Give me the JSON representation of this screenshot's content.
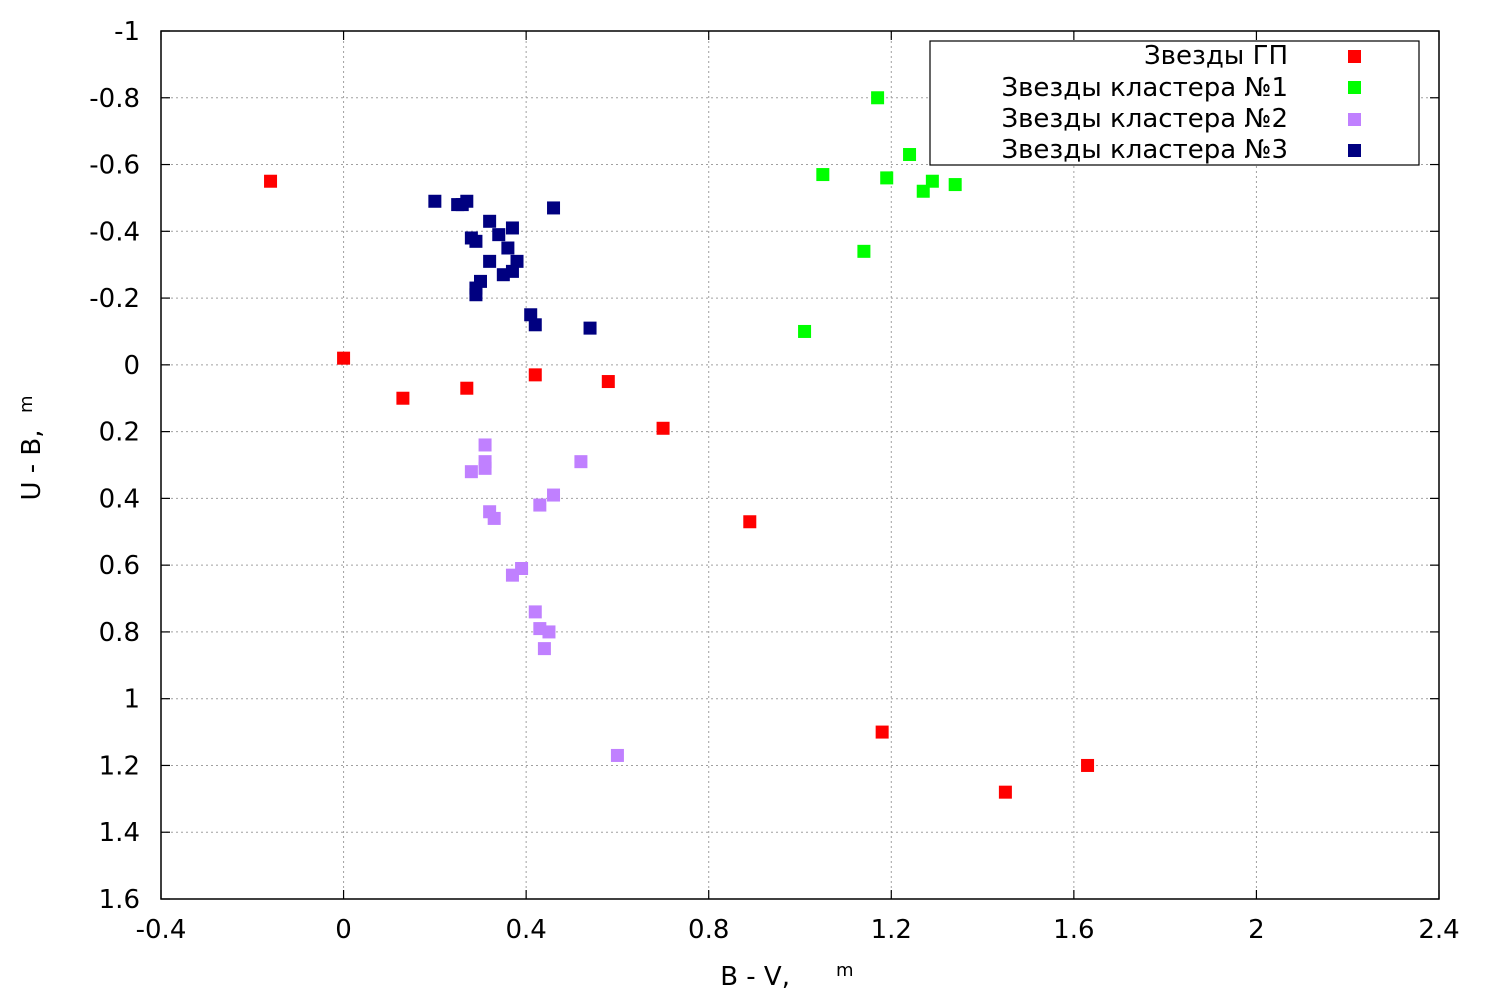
{
  "chart_data": {
    "type": "scatter",
    "xlabel": "B - V,",
    "xlabel_sup": "m",
    "ylabel": "U - B,",
    "ylabel_sup": "m",
    "xlim": [
      -0.4,
      2.4
    ],
    "ylim": [
      -1,
      1.6
    ],
    "y_inverted": true,
    "x_ticks": [
      "-0.4",
      "0",
      "0.4",
      "0.8",
      "1.2",
      "1.6",
      "2",
      "2.4"
    ],
    "x_tick_values": [
      -0.4,
      0,
      0.4,
      0.8,
      1.2,
      1.6,
      2.0,
      2.4
    ],
    "y_ticks": [
      "-1",
      "-0.8",
      "-0.6",
      "-0.4",
      "-0.2",
      "0",
      "0.2",
      "0.4",
      "0.6",
      "0.8",
      "1",
      "1.2",
      "1.4",
      "1.6"
    ],
    "y_tick_values": [
      -1,
      -0.8,
      -0.6,
      -0.4,
      -0.2,
      0,
      0.2,
      0.4,
      0.6,
      0.8,
      1,
      1.2,
      1.4,
      1.6
    ],
    "grid": true,
    "legend_position": "top-right",
    "series": [
      {
        "name": "Звезды ГП",
        "color": "#ff0000",
        "points": [
          [
            -0.16,
            -0.55
          ],
          [
            0.0,
            -0.02
          ],
          [
            0.13,
            0.1
          ],
          [
            0.27,
            0.07
          ],
          [
            0.42,
            0.03
          ],
          [
            0.58,
            0.05
          ],
          [
            0.7,
            0.19
          ],
          [
            0.89,
            0.47
          ],
          [
            1.18,
            1.1
          ],
          [
            1.63,
            1.2
          ],
          [
            1.45,
            1.28
          ]
        ]
      },
      {
        "name": "Звезды кластера №1",
        "color": "#00ff00",
        "points": [
          [
            1.17,
            -0.8
          ],
          [
            1.24,
            -0.63
          ],
          [
            1.05,
            -0.57
          ],
          [
            1.19,
            -0.56
          ],
          [
            1.29,
            -0.55
          ],
          [
            1.34,
            -0.54
          ],
          [
            1.27,
            -0.52
          ],
          [
            1.14,
            -0.34
          ],
          [
            1.01,
            -0.1
          ]
        ]
      },
      {
        "name": "Звезды кластера №2",
        "color": "#c080ff",
        "points": [
          [
            0.31,
            0.24
          ],
          [
            0.52,
            0.29
          ],
          [
            0.31,
            0.29
          ],
          [
            0.28,
            0.32
          ],
          [
            0.31,
            0.31
          ],
          [
            0.46,
            0.39
          ],
          [
            0.43,
            0.42
          ],
          [
            0.32,
            0.44
          ],
          [
            0.33,
            0.46
          ],
          [
            0.39,
            0.61
          ],
          [
            0.37,
            0.63
          ],
          [
            0.42,
            0.74
          ],
          [
            0.43,
            0.79
          ],
          [
            0.45,
            0.8
          ],
          [
            0.44,
            0.85
          ],
          [
            0.6,
            1.17
          ]
        ]
      },
      {
        "name": "Звезды кластера №3",
        "color": "#000080",
        "points": [
          [
            0.2,
            -0.49
          ],
          [
            0.25,
            -0.48
          ],
          [
            0.26,
            -0.48
          ],
          [
            0.27,
            -0.49
          ],
          [
            0.46,
            -0.47
          ],
          [
            0.32,
            -0.43
          ],
          [
            0.37,
            -0.41
          ],
          [
            0.34,
            -0.39
          ],
          [
            0.28,
            -0.38
          ],
          [
            0.29,
            -0.37
          ],
          [
            0.36,
            -0.35
          ],
          [
            0.32,
            -0.31
          ],
          [
            0.38,
            -0.31
          ],
          [
            0.37,
            -0.28
          ],
          [
            0.35,
            -0.27
          ],
          [
            0.3,
            -0.25
          ],
          [
            0.29,
            -0.23
          ],
          [
            0.29,
            -0.21
          ],
          [
            0.41,
            -0.15
          ],
          [
            0.42,
            -0.12
          ],
          [
            0.54,
            -0.11
          ]
        ]
      }
    ]
  }
}
